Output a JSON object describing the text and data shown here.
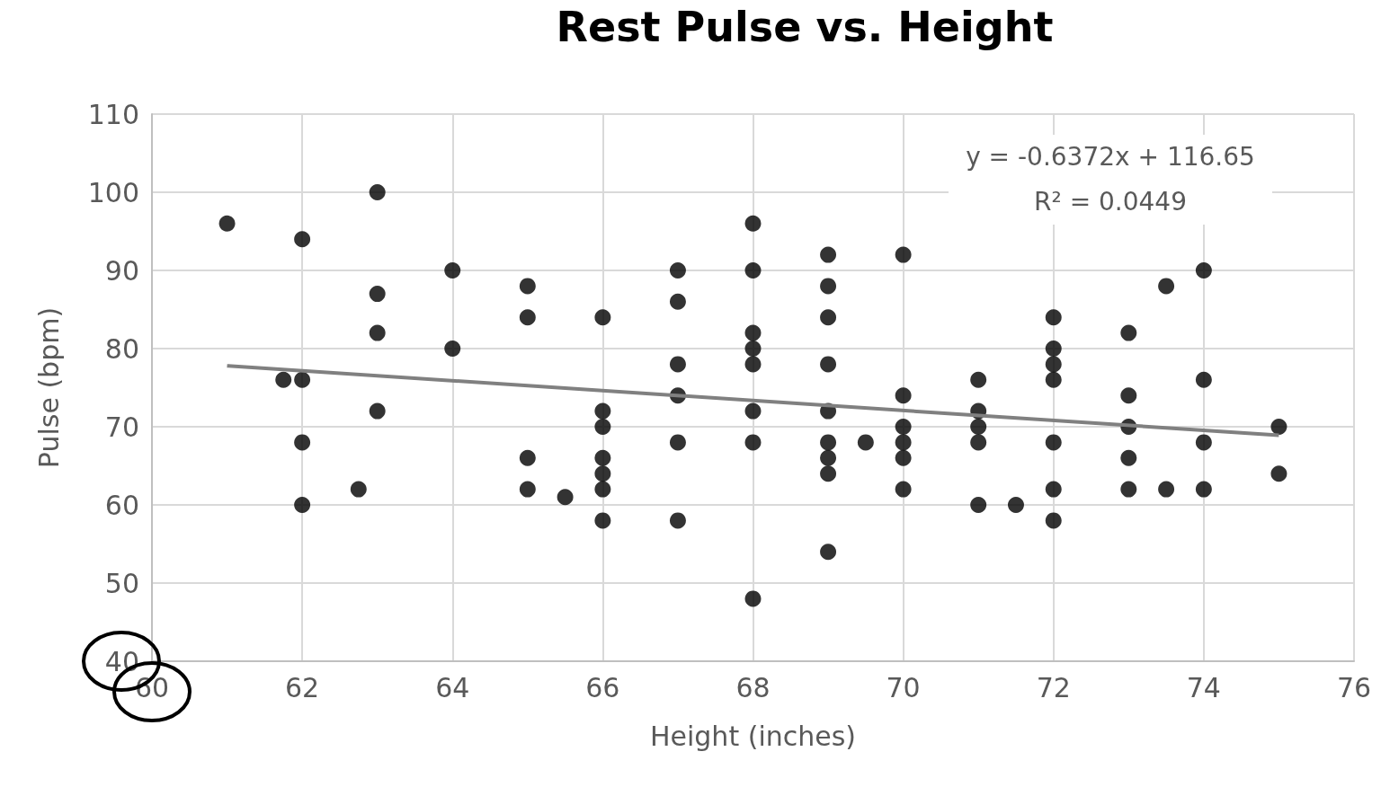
{
  "chart_data": {
    "type": "scatter",
    "title": "Rest Pulse vs. Height",
    "xlabel": "Height (inches)",
    "ylabel": "Pulse (bpm)",
    "xlim": [
      60,
      76
    ],
    "xticks": [
      60,
      62,
      64,
      66,
      68,
      70,
      72,
      74,
      76
    ],
    "ylim": [
      40,
      110
    ],
    "yticks": [
      40,
      50,
      60,
      70,
      80,
      90,
      100,
      110
    ],
    "grid": true,
    "marker": "circle",
    "annotations": [
      "y = -0.6372x + 116.65",
      "R² = 0.0449"
    ],
    "series": [
      {
        "color": "#000000",
        "x": [
          61,
          61.75,
          62,
          62,
          62,
          62,
          62.75,
          63,
          63,
          63,
          63,
          64,
          64,
          65,
          65,
          65,
          65,
          65.5,
          66,
          66,
          66,
          66,
          66,
          66,
          66,
          67,
          67,
          67,
          67,
          67,
          67,
          68,
          68,
          68,
          68,
          68,
          68,
          68,
          68,
          69,
          69,
          69,
          69,
          69,
          69,
          69,
          69,
          69,
          69.5,
          70,
          70,
          70,
          70,
          70,
          70,
          71,
          71,
          71,
          71,
          71,
          71.5,
          72,
          72,
          72,
          72,
          72,
          72,
          72,
          73,
          73,
          73,
          73,
          73,
          73.5,
          73.5,
          74,
          74,
          74,
          74,
          75,
          75
        ],
        "values": [
          96,
          76,
          94,
          76,
          68,
          60,
          62,
          100,
          87,
          82,
          72,
          90,
          80,
          88,
          84,
          66,
          62,
          61,
          84,
          72,
          70,
          66,
          64,
          62,
          58,
          90,
          86,
          78,
          74,
          68,
          58,
          96,
          90,
          82,
          80,
          78,
          72,
          68,
          48,
          92,
          88,
          84,
          78,
          72,
          68,
          66,
          64,
          54,
          68,
          92,
          74,
          70,
          68,
          66,
          62,
          76,
          72,
          70,
          68,
          60,
          60,
          84,
          80,
          78,
          76,
          68,
          62,
          58,
          82,
          74,
          70,
          66,
          62,
          88,
          62,
          90,
          76,
          68,
          62,
          70,
          64
        ]
      },
      {
        "type": "line",
        "color": "#808080",
        "x": [
          61,
          75
        ],
        "values": [
          77.8,
          68.9
        ],
        "marker": "none"
      }
    ]
  }
}
